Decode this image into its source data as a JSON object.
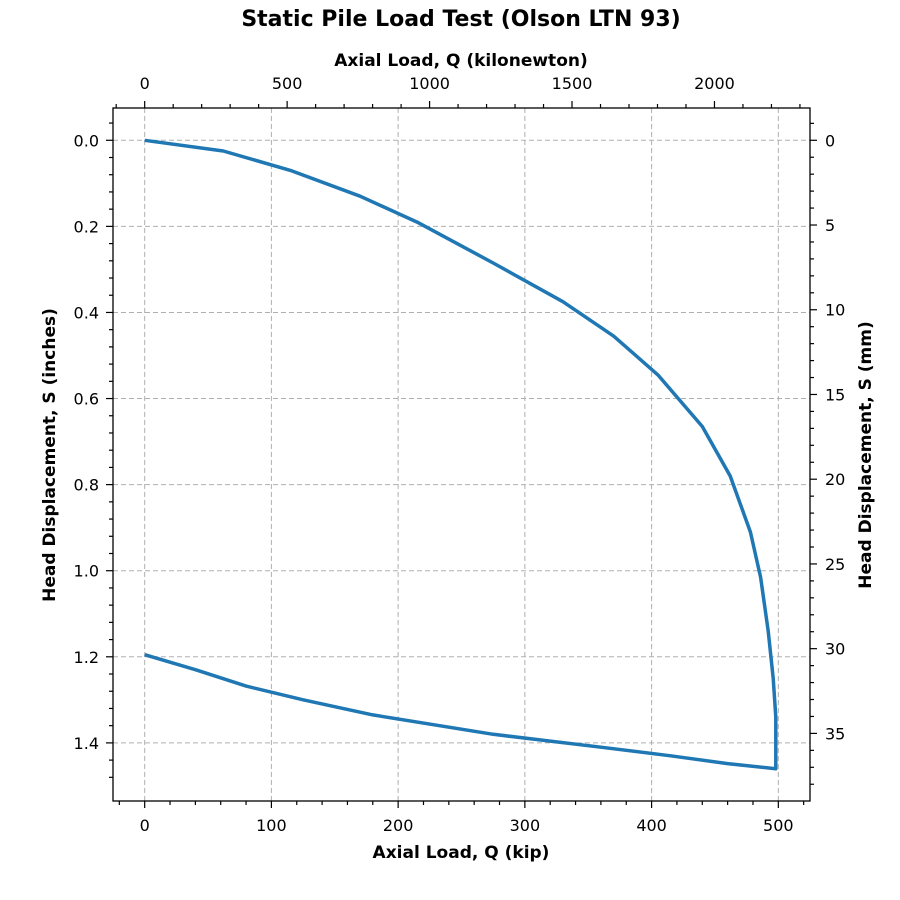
{
  "chart_data": {
    "type": "line",
    "title": "Static Pile Load Test (Olson LTN 93)",
    "xlabel": "Axial Load, Q (kip)",
    "ylabel": "Head Displacement, S (inches)",
    "secondary_xlabel": "Axial Load, Q (kilonewton)",
    "secondary_ylabel": "Head Displacement, S (mm)",
    "xlim": [
      -25,
      525
    ],
    "ylim": [
      1.535,
      -0.075
    ],
    "y_inverted": true,
    "grid": true,
    "x_ticks": [
      0,
      100,
      200,
      300,
      400,
      500
    ],
    "x_tick_labels": [
      "0",
      "100",
      "200",
      "300",
      "400",
      "500"
    ],
    "y_ticks": [
      0.0,
      0.2,
      0.4,
      0.6,
      0.8,
      1.0,
      1.2,
      1.4
    ],
    "y_tick_labels": [
      "0.0",
      "0.2",
      "0.4",
      "0.6",
      "0.8",
      "1.0",
      "1.2",
      "1.4"
    ],
    "secondary_x_ticks": [
      0,
      500,
      1000,
      1500,
      2000
    ],
    "secondary_x_tick_labels": [
      "0",
      "500",
      "1000",
      "1500",
      "2000"
    ],
    "secondary_y_ticks": [
      0,
      5,
      10,
      15,
      20,
      25,
      30,
      35
    ],
    "secondary_y_tick_labels": [
      "0",
      "5",
      "10",
      "15",
      "20",
      "25",
      "30",
      "35"
    ],
    "series": [
      {
        "color": "#1f77b4",
        "x": [
          0,
          62,
          115,
          170,
          215,
          275,
          330,
          370,
          405,
          440,
          462,
          478,
          486,
          492,
          496,
          498,
          498,
          498,
          460,
          415,
          360,
          275,
          180,
          125,
          80,
          40,
          0
        ],
        "y": [
          0.0,
          0.025,
          0.07,
          0.13,
          0.19,
          0.285,
          0.375,
          0.455,
          0.545,
          0.665,
          0.78,
          0.91,
          1.015,
          1.14,
          1.25,
          1.34,
          1.4,
          1.46,
          1.448,
          1.43,
          1.41,
          1.38,
          1.335,
          1.3,
          1.268,
          1.23,
          1.195
        ]
      }
    ]
  }
}
